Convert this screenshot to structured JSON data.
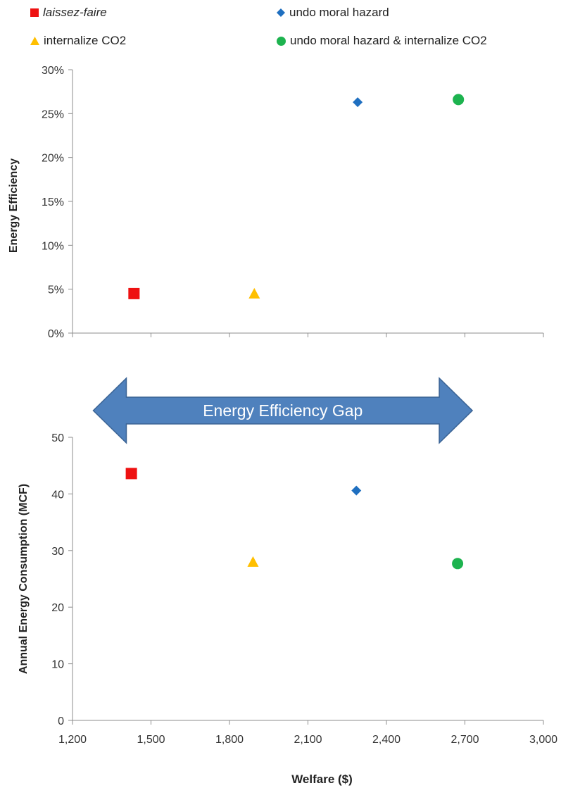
{
  "legend": [
    {
      "label": "laissez-faire",
      "italic": true,
      "shape": "square",
      "color": "#ee1111"
    },
    {
      "label": "undo moral hazard",
      "italic": false,
      "shape": "diamond",
      "color": "#1f6fc0"
    },
    {
      "label": "internalize CO2",
      "italic": false,
      "shape": "triangle",
      "color": "#ffbf00"
    },
    {
      "label": "undo moral hazard & internalize CO2",
      "italic": false,
      "shape": "circle",
      "color": "#1db34f"
    }
  ],
  "annotation": {
    "text": "Energy Efficiency Gap",
    "from_x": 1430,
    "to_x": 2680,
    "color": "#4f81bd"
  },
  "chart_data": [
    {
      "type": "scatter",
      "title": "",
      "xlabel": "",
      "ylabel": "Energy Efficiency",
      "xlim": [
        1200,
        3000
      ],
      "ylim": [
        0,
        0.3
      ],
      "yticks": [
        "0%",
        "5%",
        "10%",
        "15%",
        "20%",
        "25%",
        "30%"
      ],
      "grid": false,
      "series": [
        {
          "name": "laissez-faire",
          "x": [
            1435
          ],
          "y": [
            0.045
          ]
        },
        {
          "name": "internalize CO2",
          "x": [
            1895
          ],
          "y": [
            0.045
          ]
        },
        {
          "name": "undo moral hazard",
          "x": [
            2290
          ],
          "y": [
            0.263
          ]
        },
        {
          "name": "undo moral hazard & internalize CO2",
          "x": [
            2675
          ],
          "y": [
            0.266
          ]
        }
      ]
    },
    {
      "type": "scatter",
      "title": "",
      "xlabel": "Welfare ($)",
      "ylabel": "Annual Energy Consumption (MCF)",
      "xlim": [
        1200,
        3000
      ],
      "ylim": [
        0,
        50
      ],
      "xticks": [
        "1,200",
        "1,500",
        "1,800",
        "2,100",
        "2,400",
        "2,700",
        "3,000"
      ],
      "yticks": [
        "0",
        "10",
        "20",
        "30",
        "40",
        "50"
      ],
      "grid": false,
      "series": [
        {
          "name": "laissez-faire",
          "x": [
            1425
          ],
          "y": [
            43.6
          ]
        },
        {
          "name": "internalize CO2",
          "x": [
            1890
          ],
          "y": [
            28
          ]
        },
        {
          "name": "undo moral hazard",
          "x": [
            2285
          ],
          "y": [
            40.6
          ]
        },
        {
          "name": "undo moral hazard & internalize CO2",
          "x": [
            2672
          ],
          "y": [
            27.7
          ]
        }
      ]
    }
  ]
}
